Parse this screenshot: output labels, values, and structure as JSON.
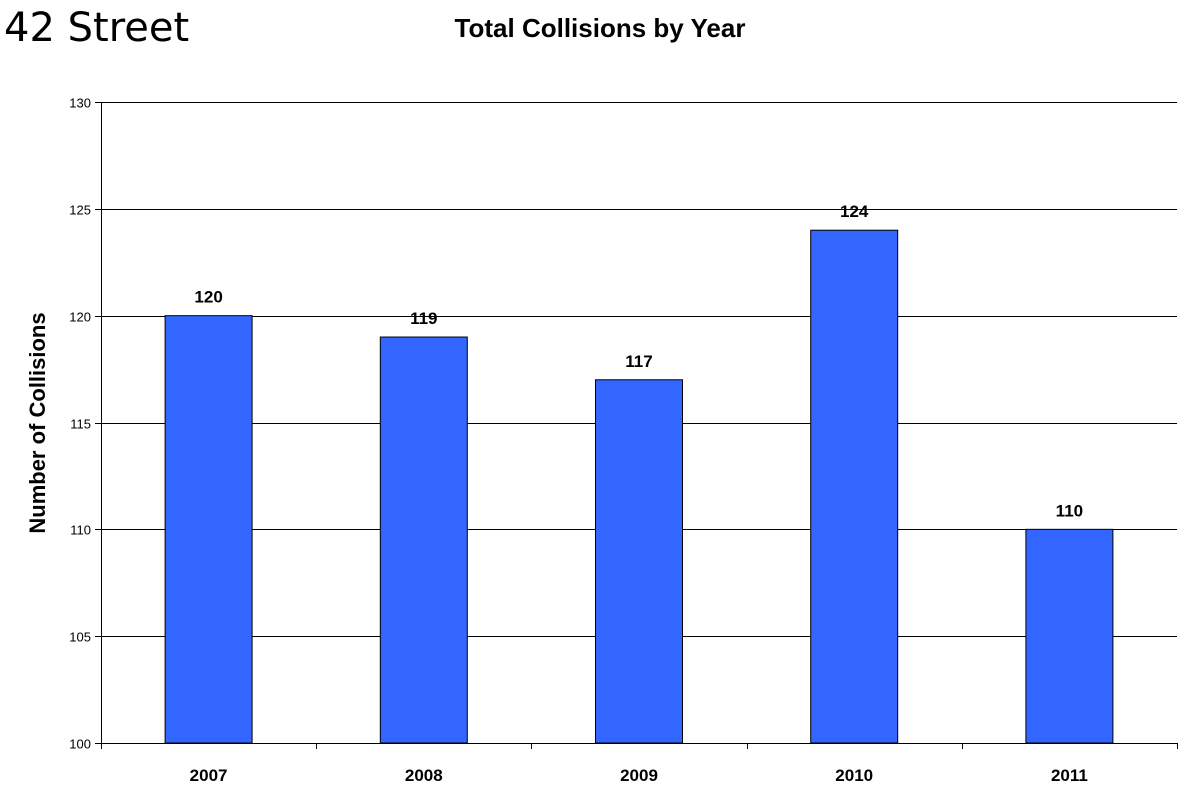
{
  "heading": "42 Street",
  "colors": {
    "bar": "#3366FF",
    "bar_stroke": "#000000",
    "gridline": "#000000"
  },
  "chart_data": {
    "type": "bar",
    "title": "Total Collisions by Year",
    "xlabel": "",
    "ylabel": "Number of Collisions",
    "categories": [
      "2007",
      "2008",
      "2009",
      "2010",
      "2011"
    ],
    "values": [
      120,
      119,
      117,
      124,
      110
    ],
    "ylim": [
      100,
      130
    ],
    "yticks": [
      100,
      105,
      110,
      115,
      120,
      125,
      130
    ],
    "grid": true,
    "legend": "none",
    "data_labels": true
  }
}
